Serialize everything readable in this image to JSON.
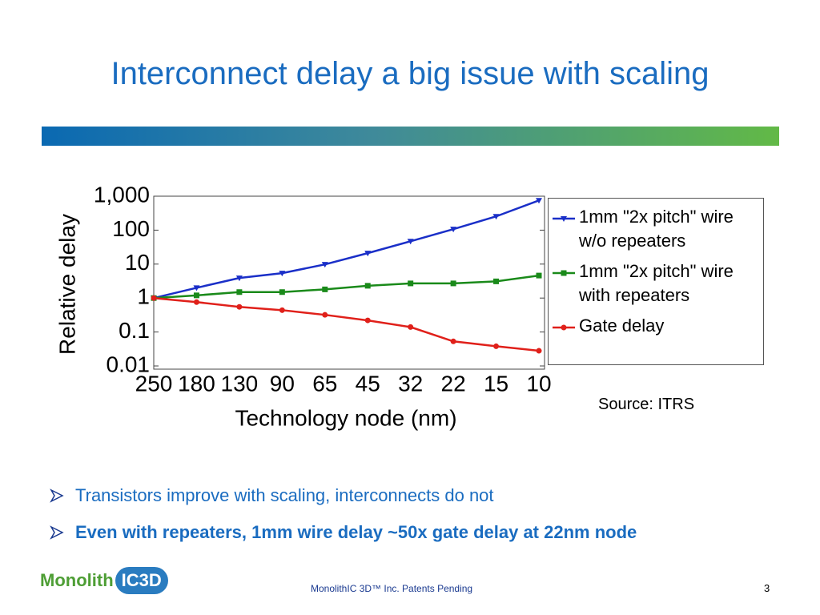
{
  "slide": {
    "title": "Interconnect delay a big issue with scaling",
    "source": "Source: ITRS",
    "bullets": [
      {
        "text": "Transistors improve with scaling, interconnects do not",
        "bold": false
      },
      {
        "text": "Even with repeaters, 1mm wire delay ~50x gate delay at 22nm node",
        "bold": true
      }
    ],
    "logo": [
      "Monolith",
      "IC3D"
    ],
    "footer": "MonolithIC 3D™ Inc. Patents Pending",
    "page_number": "3"
  },
  "chart_data": {
    "type": "line",
    "x_label": "Technology node (nm)",
    "y_label": "Relative delay",
    "categories": [
      "250",
      "180",
      "130",
      "90",
      "65",
      "45",
      "32",
      "22",
      "15",
      "10"
    ],
    "log_y": true,
    "ylim": [
      0.01,
      1000
    ],
    "yticks": [
      0.01,
      0.1,
      1,
      10,
      100,
      {
        "value": 1000,
        "label": "1,000"
      }
    ],
    "series": [
      {
        "name": "1mm \"2x pitch\" wire w/o repeaters",
        "color": "#1a2fc8",
        "marker": "triangle-down",
        "values": [
          1,
          2,
          3.9,
          5.4,
          9.8,
          21,
          47,
          107,
          254,
          750
        ]
      },
      {
        "name": "1mm \"2x pitch\" wire with repeaters",
        "color": "#1a8a1a",
        "marker": "square",
        "values": [
          1,
          1.2,
          1.5,
          1.5,
          1.8,
          2.3,
          2.7,
          2.7,
          3.1,
          4.6
        ]
      },
      {
        "name": "Gate delay",
        "color": "#e0201a",
        "marker": "circle",
        "values": [
          1,
          0.76,
          0.55,
          0.44,
          0.32,
          0.22,
          0.14,
          0.053,
          0.038,
          0.028
        ]
      }
    ]
  }
}
